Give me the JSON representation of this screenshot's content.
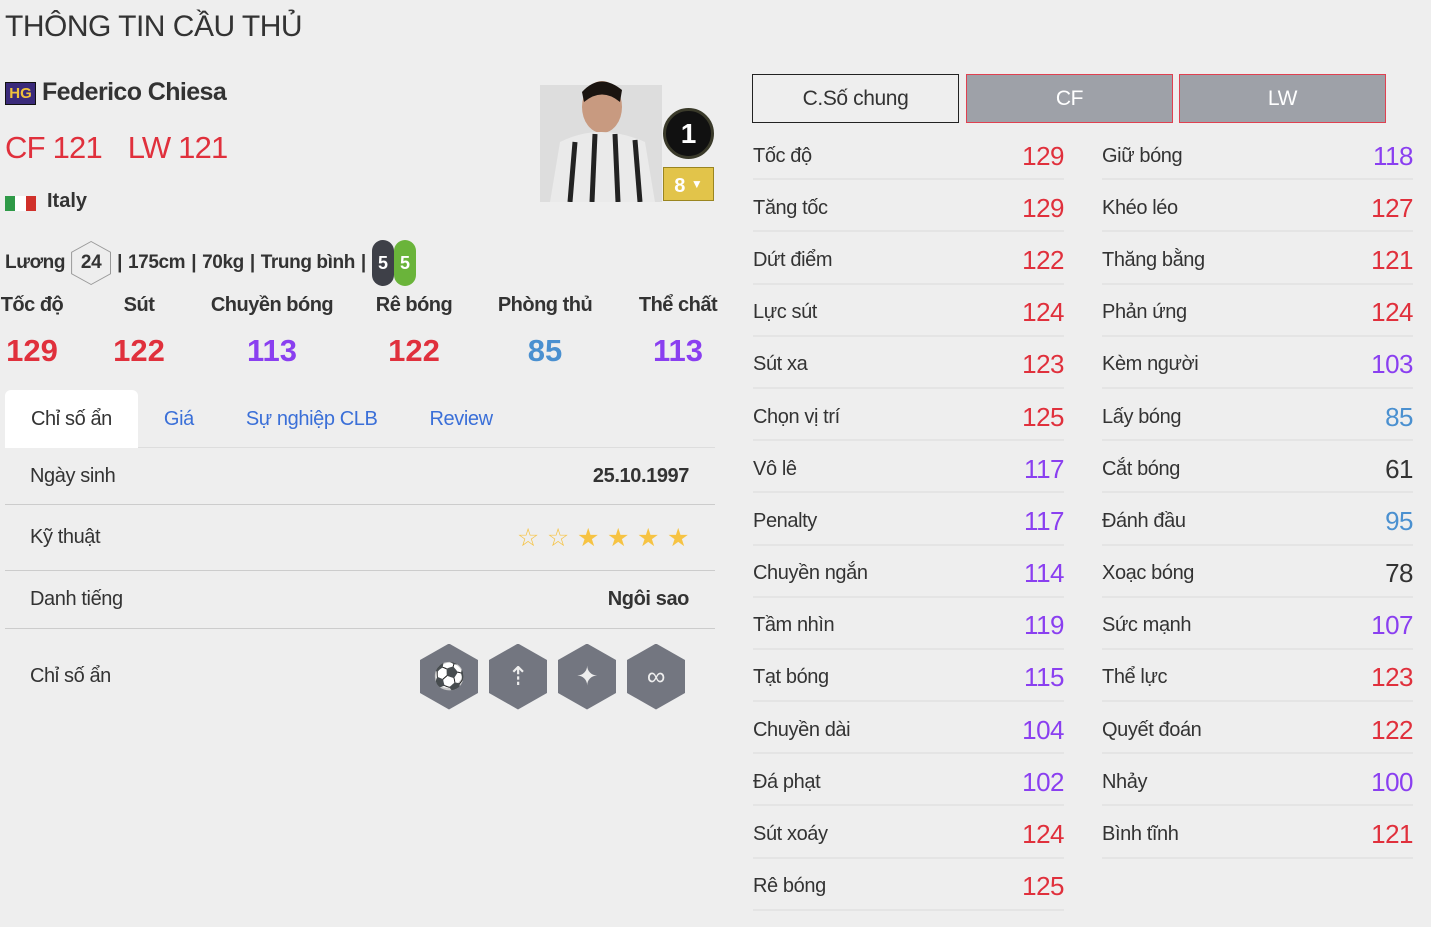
{
  "page_title": "THÔNG TIN CẦU THỦ",
  "player": {
    "season_badge": "HG",
    "name": "Federico Chiesa",
    "positions": [
      {
        "pos": "CF",
        "ovr": "121"
      },
      {
        "pos": "LW",
        "ovr": "121"
      }
    ],
    "nation": "Italy",
    "salary_label": "Lương",
    "salary": "24",
    "height": "175cm",
    "weight": "70kg",
    "body_type": "Trung bình",
    "left_foot": "5",
    "right_foot": "5",
    "jersey_number": "1",
    "upgrade_level": "8"
  },
  "main_stats": [
    {
      "label": "Tốc độ",
      "value": "129",
      "color": "#e0303c"
    },
    {
      "label": "Sút",
      "value": "122",
      "color": "#e0303c"
    },
    {
      "label": "Chuyền bóng",
      "value": "113",
      "color": "#8a3ff0"
    },
    {
      "label": "Rê bóng",
      "value": "122",
      "color": "#e0303c"
    },
    {
      "label": "Phòng thủ",
      "value": "85",
      "color": "#4a90d0"
    },
    {
      "label": "Thể chất",
      "value": "113",
      "color": "#8a3ff0"
    }
  ],
  "tabs": [
    "Chỉ số ẩn",
    "Giá",
    "Sự nghiệp CLB",
    "Review"
  ],
  "details": {
    "birth_label": "Ngày sinh",
    "birth": "25.10.1997",
    "skill_label": "Kỹ thuật",
    "skill_stars": 4,
    "skill_max": 6,
    "fame_label": "Danh tiếng",
    "fame": "Ngôi sao",
    "hidden_label": "Chỉ số ẩn",
    "hidden_traits": [
      "goal-shot-icon",
      "power-header-icon",
      "speed-dribbler-icon",
      "flair-passing-icon"
    ]
  },
  "stat_buttons": [
    "C.Số chung",
    "CF",
    "LW"
  ],
  "colors": {
    "high": "#e0303c",
    "mid": "#8a3ff0",
    "low": "#4a90d0",
    "base": "#333333"
  },
  "stats_left": [
    [
      "Tốc độ",
      "129"
    ],
    [
      "Tăng tốc",
      "129"
    ],
    [
      "Dứt điểm",
      "122"
    ],
    [
      "Lực sút",
      "124"
    ],
    [
      "Sút xa",
      "123"
    ],
    [
      "Chọn vị trí",
      "125"
    ],
    [
      "Vô lê",
      "117"
    ],
    [
      "Penalty",
      "117"
    ],
    [
      "Chuyền ngắn",
      "114"
    ],
    [
      "Tầm nhìn",
      "119"
    ],
    [
      "Tạt bóng",
      "115"
    ],
    [
      "Chuyền dài",
      "104"
    ],
    [
      "Đá phạt",
      "102"
    ],
    [
      "Sút xoáy",
      "124"
    ],
    [
      "Rê bóng",
      "125"
    ]
  ],
  "stats_right": [
    [
      "Giữ bóng",
      "118"
    ],
    [
      "Khéo léo",
      "127"
    ],
    [
      "Thăng bằng",
      "121"
    ],
    [
      "Phản ứng",
      "124"
    ],
    [
      "Kèm người",
      "103"
    ],
    [
      "Lấy bóng",
      "85"
    ],
    [
      "Cắt bóng",
      "61"
    ],
    [
      "Đánh đầu",
      "95"
    ],
    [
      "Xoạc bóng",
      "78"
    ],
    [
      "Sức mạnh",
      "107"
    ],
    [
      "Thể lực",
      "123"
    ],
    [
      "Quyết đoán",
      "122"
    ],
    [
      "Nhảy",
      "100"
    ],
    [
      "Bình tĩnh",
      "121"
    ]
  ]
}
